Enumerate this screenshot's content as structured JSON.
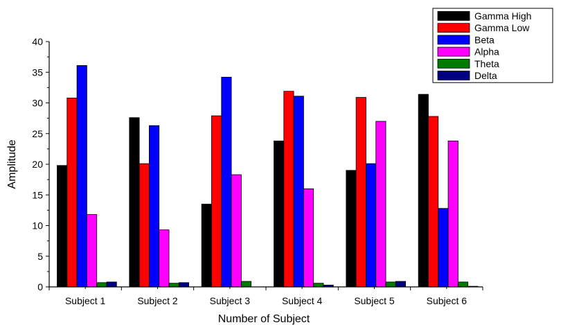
{
  "chart_data": {
    "type": "bar",
    "title": "",
    "xlabel": "Number of Subject",
    "ylabel": "Amplitude",
    "ylim": [
      0,
      40
    ],
    "yticks": [
      0,
      5,
      10,
      15,
      20,
      25,
      30,
      35,
      40
    ],
    "grid": false,
    "legend_position": "top-right",
    "categories": [
      "Subject 1",
      "Subject 2",
      "Subject 3",
      "Subject 4",
      "Subject 5",
      "Subject 6"
    ],
    "series": [
      {
        "name": "Gamma High",
        "color": "#000000",
        "values": [
          19.8,
          27.6,
          13.5,
          23.8,
          19.0,
          31.4
        ]
      },
      {
        "name": "Gamma Low",
        "color": "#ff0000",
        "values": [
          30.8,
          20.1,
          27.9,
          31.9,
          30.9,
          27.8
        ]
      },
      {
        "name": "Beta",
        "color": "#0000ff",
        "values": [
          36.1,
          26.3,
          34.2,
          31.1,
          20.1,
          12.8
        ]
      },
      {
        "name": "Alpha",
        "color": "#ff00ff",
        "values": [
          11.8,
          9.3,
          18.3,
          16.0,
          27.0,
          23.8
        ]
      },
      {
        "name": "Theta",
        "color": "#007a00",
        "values": [
          0.7,
          0.6,
          0.9,
          0.6,
          0.8,
          0.8
        ]
      },
      {
        "name": "Delta",
        "color": "#000080",
        "values": [
          0.8,
          0.7,
          0.0,
          0.3,
          0.9,
          0.1
        ]
      }
    ]
  }
}
